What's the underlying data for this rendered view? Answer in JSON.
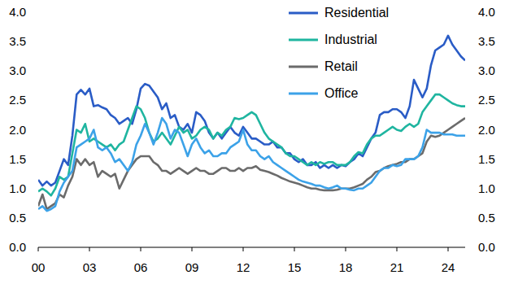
{
  "chart_data": {
    "type": "line",
    "x": [
      2000,
      2000.25,
      2000.5,
      2000.75,
      2001,
      2001.25,
      2001.5,
      2001.75,
      2002,
      2002.25,
      2002.5,
      2002.75,
      2003,
      2003.25,
      2003.5,
      2003.75,
      2004,
      2004.25,
      2004.5,
      2004.75,
      2005,
      2005.25,
      2005.5,
      2005.75,
      2006,
      2006.25,
      2006.5,
      2006.75,
      2007,
      2007.25,
      2007.5,
      2007.75,
      2008,
      2008.25,
      2008.5,
      2008.75,
      2009,
      2009.25,
      2009.5,
      2009.75,
      2010,
      2010.25,
      2010.5,
      2010.75,
      2011,
      2011.25,
      2011.5,
      2011.75,
      2012,
      2012.25,
      2012.5,
      2012.75,
      2013,
      2013.25,
      2013.5,
      2013.75,
      2014,
      2014.25,
      2014.5,
      2014.75,
      2015,
      2015.25,
      2015.5,
      2015.75,
      2016,
      2016.25,
      2016.5,
      2016.75,
      2017,
      2017.25,
      2017.5,
      2017.75,
      2018,
      2018.25,
      2018.5,
      2018.75,
      2019,
      2019.25,
      2019.5,
      2019.75,
      2020,
      2020.25,
      2020.5,
      2020.75,
      2021,
      2021.25,
      2021.5,
      2021.75,
      2022,
      2022.25,
      2022.5,
      2022.75,
      2023,
      2023.25,
      2023.5,
      2023.75,
      2024,
      2024.25,
      2024.5,
      2024.75,
      2025
    ],
    "series": [
      {
        "name": "Residential",
        "color": "#2a5cc6",
        "values": [
          1.15,
          1.05,
          1.12,
          1.05,
          1.1,
          1.3,
          1.5,
          1.4,
          1.9,
          2.6,
          2.68,
          2.6,
          2.7,
          2.4,
          2.42,
          2.38,
          2.35,
          2.25,
          2.2,
          2.1,
          2.15,
          2.2,
          2.1,
          2.35,
          2.7,
          2.78,
          2.75,
          2.65,
          2.55,
          2.35,
          2.45,
          2.2,
          2.25,
          2.05,
          2.0,
          2.1,
          1.95,
          2.3,
          2.25,
          2.15,
          1.95,
          1.85,
          1.95,
          1.85,
          1.95,
          2.05,
          1.95,
          1.9,
          2.05,
          1.95,
          1.85,
          1.85,
          1.8,
          1.75,
          1.75,
          1.8,
          1.7,
          1.7,
          1.6,
          1.6,
          1.5,
          1.45,
          1.5,
          1.4,
          1.4,
          1.45,
          1.35,
          1.4,
          1.35,
          1.4,
          1.35,
          1.4,
          1.38,
          1.45,
          1.5,
          1.6,
          1.55,
          1.7,
          1.85,
          1.95,
          2.25,
          2.3,
          2.3,
          2.35,
          2.35,
          2.3,
          2.2,
          2.4,
          2.85,
          2.7,
          2.55,
          2.7,
          3.1,
          3.35,
          3.4,
          3.45,
          3.6,
          3.45,
          3.35,
          3.25,
          3.18
        ]
      },
      {
        "name": "Industrial",
        "color": "#1fb5a0",
        "values": [
          0.95,
          1.0,
          0.95,
          0.88,
          1.0,
          1.2,
          1.15,
          1.2,
          1.6,
          2.0,
          1.95,
          2.1,
          1.8,
          1.85,
          1.8,
          1.75,
          1.7,
          1.75,
          1.65,
          1.75,
          1.8,
          2.0,
          2.2,
          2.4,
          2.35,
          2.2,
          1.95,
          1.8,
          1.85,
          1.95,
          1.85,
          1.75,
          1.9,
          2.05,
          1.95,
          2.0,
          1.85,
          1.9,
          2.0,
          2.05,
          2.0,
          1.85,
          1.95,
          1.9,
          2.0,
          2.05,
          2.2,
          2.18,
          2.2,
          2.25,
          2.3,
          2.25,
          2.1,
          1.95,
          1.85,
          1.8,
          1.75,
          1.7,
          1.6,
          1.55,
          1.55,
          1.5,
          1.45,
          1.4,
          1.45,
          1.4,
          1.45,
          1.42,
          1.45,
          1.45,
          1.4,
          1.4,
          1.4,
          1.45,
          1.55,
          1.62,
          1.6,
          1.75,
          1.85,
          1.9,
          1.9,
          1.95,
          2.0,
          2.05,
          2.0,
          1.98,
          2.05,
          2.1,
          2.05,
          2.1,
          2.3,
          2.4,
          2.5,
          2.6,
          2.6,
          2.55,
          2.5,
          2.45,
          2.42,
          2.4,
          2.4
        ]
      },
      {
        "name": "Retail",
        "color": "#6b6b6b",
        "values": [
          0.7,
          0.9,
          0.65,
          0.7,
          0.75,
          0.9,
          0.85,
          1.05,
          1.2,
          1.5,
          1.4,
          1.5,
          1.4,
          1.45,
          1.2,
          1.3,
          1.25,
          1.2,
          1.25,
          1.0,
          1.15,
          1.3,
          1.4,
          1.5,
          1.55,
          1.55,
          1.55,
          1.45,
          1.4,
          1.3,
          1.3,
          1.25,
          1.3,
          1.35,
          1.3,
          1.25,
          1.3,
          1.35,
          1.3,
          1.3,
          1.25,
          1.25,
          1.3,
          1.35,
          1.35,
          1.3,
          1.3,
          1.35,
          1.3,
          1.35,
          1.35,
          1.38,
          1.32,
          1.3,
          1.28,
          1.25,
          1.22,
          1.18,
          1.15,
          1.12,
          1.1,
          1.08,
          1.05,
          1.02,
          1.0,
          1.0,
          0.98,
          0.97,
          0.97,
          0.97,
          0.98,
          1.0,
          1.0,
          1.0,
          1.02,
          1.05,
          1.08,
          1.15,
          1.2,
          1.28,
          1.3,
          1.35,
          1.38,
          1.4,
          1.42,
          1.45,
          1.45,
          1.5,
          1.5,
          1.55,
          1.6,
          1.8,
          1.9,
          1.88,
          1.9,
          1.95,
          2.0,
          2.05,
          2.1,
          2.15,
          2.2
        ]
      },
      {
        "name": "Office",
        "color": "#3ca2e8",
        "values": [
          0.65,
          0.7,
          0.62,
          0.65,
          0.7,
          0.95,
          1.1,
          1.2,
          1.3,
          1.7,
          1.75,
          1.8,
          1.85,
          2.0,
          1.7,
          1.65,
          1.7,
          1.6,
          1.45,
          1.5,
          1.4,
          1.3,
          1.45,
          1.75,
          1.9,
          2.1,
          1.95,
          1.75,
          1.95,
          2.2,
          2.1,
          1.85,
          2.0,
          1.95,
          1.75,
          1.55,
          1.75,
          1.85,
          1.7,
          1.6,
          1.65,
          1.55,
          1.55,
          1.6,
          1.6,
          1.7,
          1.75,
          1.8,
          2.0,
          1.75,
          1.65,
          1.65,
          1.55,
          1.5,
          1.55,
          1.45,
          1.4,
          1.35,
          1.3,
          1.25,
          1.2,
          1.15,
          1.12,
          1.1,
          1.08,
          1.05,
          1.05,
          1.02,
          1.0,
          1.02,
          1.05,
          1.0,
          1.0,
          0.98,
          0.97,
          1.0,
          1.0,
          1.05,
          1.1,
          1.2,
          1.3,
          1.35,
          1.35,
          1.4,
          1.38,
          1.4,
          1.5,
          1.5,
          1.5,
          1.55,
          1.7,
          2.0,
          1.95,
          1.95,
          1.95,
          1.92,
          1.92,
          1.92,
          1.9,
          1.9,
          1.9
        ]
      }
    ],
    "xlim": [
      2000,
      2025
    ],
    "xticks": [
      {
        "value": 2000,
        "label": "00"
      },
      {
        "value": 2003,
        "label": "03"
      },
      {
        "value": 2006,
        "label": "06"
      },
      {
        "value": 2009,
        "label": "09"
      },
      {
        "value": 2012,
        "label": "12"
      },
      {
        "value": 2015,
        "label": "15"
      },
      {
        "value": 2018,
        "label": "18"
      },
      {
        "value": 2021,
        "label": "21"
      },
      {
        "value": 2024,
        "label": "24"
      }
    ],
    "ylim": [
      0,
      4
    ],
    "yticks": [
      {
        "value": 0,
        "label": "0.0"
      },
      {
        "value": 0.5,
        "label": "0.5"
      },
      {
        "value": 1,
        "label": "1.0"
      },
      {
        "value": 1.5,
        "label": "1.5"
      },
      {
        "value": 2,
        "label": "2.0"
      },
      {
        "value": 2.5,
        "label": "2.5"
      },
      {
        "value": 3,
        "label": "3.0"
      },
      {
        "value": 3.5,
        "label": "3.5"
      },
      {
        "value": 4,
        "label": "4.0"
      }
    ],
    "grid": false,
    "legend": "top-right"
  }
}
